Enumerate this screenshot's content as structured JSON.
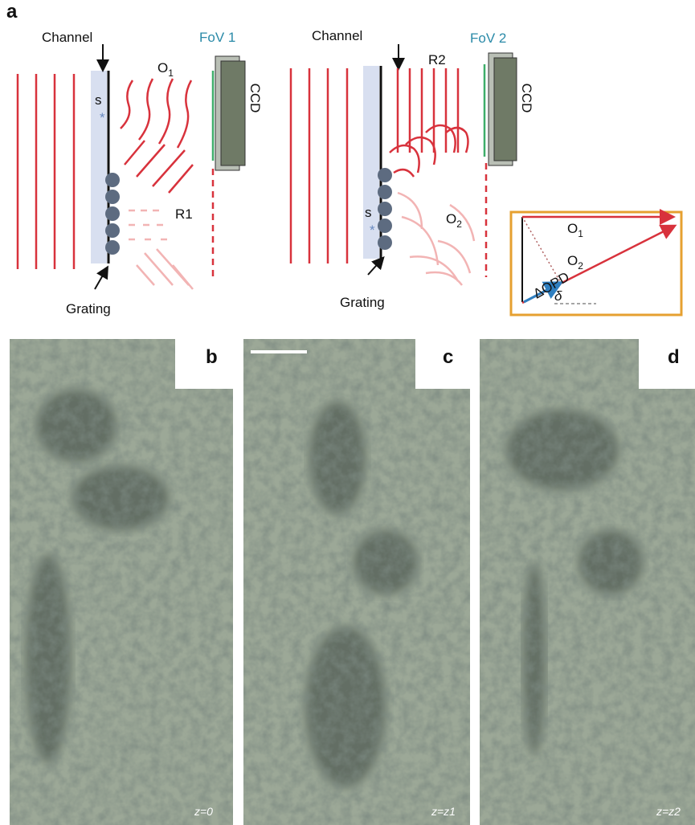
{
  "panel_a": {
    "label": "a",
    "left": {
      "channel": "Channel",
      "fov": "FoV 1",
      "object": {
        "base": "O",
        "sub": "1"
      },
      "sample": "s",
      "marker": "*",
      "detector": "CCD",
      "reference": "R1",
      "grating": "Grating"
    },
    "right": {
      "channel": "Channel",
      "fov": "FoV 2",
      "object": {
        "base": "O",
        "sub": "2"
      },
      "sample": "s",
      "marker": "*",
      "detector": "CCD",
      "reference": "R2",
      "grating": "Grating"
    },
    "inset": {
      "o1": {
        "base": "O",
        "sub": "1"
      },
      "o2": {
        "base": "O",
        "sub": "2"
      },
      "delta_opd": "ΔOPD",
      "angle": "δ"
    }
  },
  "panels": [
    {
      "label": "b",
      "depth": "z=0"
    },
    {
      "label": "c",
      "depth": "z=z1"
    },
    {
      "label": "d",
      "depth": "z=z2"
    }
  ]
}
